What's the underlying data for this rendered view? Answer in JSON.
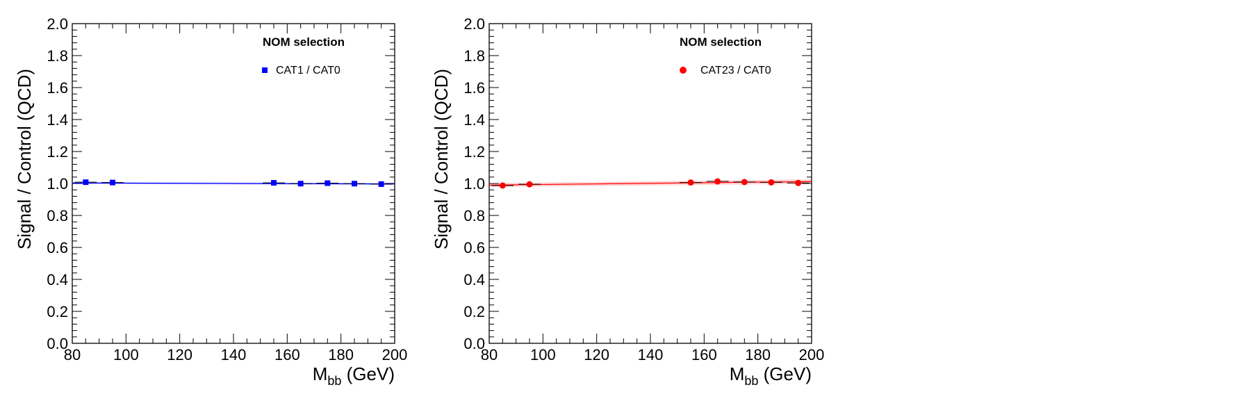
{
  "chart_data": [
    {
      "type": "scatter",
      "title": "",
      "xlabel": "M",
      "xlabel_sub": "bb",
      "xlabel_unit": " (GeV)",
      "ylabel": "Signal / Control (QCD)",
      "xlim": [
        80,
        200
      ],
      "ylim": [
        0.0,
        2.0
      ],
      "x_ticks": [
        "80",
        "100",
        "120",
        "140",
        "160",
        "180",
        "200"
      ],
      "y_ticks": [
        "0.0",
        "0.2",
        "0.4",
        "0.6",
        "0.8",
        "1.0",
        "1.2",
        "1.4",
        "1.6",
        "1.8",
        "2.0"
      ],
      "legend_header": "NOM selection",
      "legend_placement": "top-right",
      "marker": "square",
      "color": "#0000ff",
      "series": [
        {
          "name": "CAT1 / CAT0",
          "x": [
            85,
            95,
            155,
            165,
            175,
            185,
            195
          ],
          "y": [
            1.008,
            1.006,
            1.004,
            0.999,
            1.002,
            0.999,
            0.996
          ]
        }
      ],
      "fit": {
        "x": [
          80,
          200
        ],
        "y": [
          1.003,
          0.997
        ],
        "band_halfwidth": [
          0.006,
          0.006
        ]
      }
    },
    {
      "type": "scatter",
      "title": "",
      "xlabel": "M",
      "xlabel_sub": "bb",
      "xlabel_unit": " (GeV)",
      "ylabel": "Signal / Control (QCD)",
      "xlim": [
        80,
        200
      ],
      "ylim": [
        0.0,
        2.0
      ],
      "x_ticks": [
        "80",
        "100",
        "120",
        "140",
        "160",
        "180",
        "200"
      ],
      "y_ticks": [
        "0.0",
        "0.2",
        "0.4",
        "0.6",
        "0.8",
        "1.0",
        "1.2",
        "1.4",
        "1.6",
        "1.8",
        "2.0"
      ],
      "legend_header": "NOM selection",
      "legend_placement": "top-right",
      "marker": "circle",
      "color": "#ff0000",
      "series": [
        {
          "name": "CAT23 / CAT0",
          "x": [
            85,
            95,
            155,
            165,
            175,
            185,
            195
          ],
          "y": [
            0.987,
            0.995,
            1.006,
            1.013,
            1.009,
            1.007,
            1.003
          ]
        }
      ],
      "fit": {
        "x": [
          80,
          200
        ],
        "y": [
          0.99,
          1.012
        ],
        "band_halfwidth": [
          0.012,
          0.014
        ]
      }
    }
  ]
}
